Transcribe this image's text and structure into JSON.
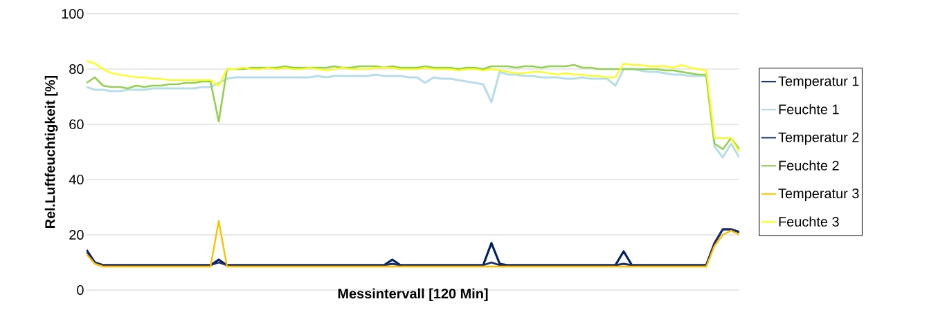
{
  "chart_data": {
    "type": "line",
    "xlabel": "Messintervall [120 Min]",
    "ylabel": "Rel.Luftfeuchtigkeit [%]",
    "categories": [
      null,
      null,
      null,
      null,
      null,
      null,
      null,
      null,
      null,
      null,
      null,
      null,
      null,
      null,
      null,
      null,
      null,
      null,
      null,
      null,
      null,
      null,
      null,
      null,
      null,
      null,
      null,
      null,
      null,
      null,
      null,
      null,
      null,
      null,
      null,
      null,
      null,
      null,
      null,
      null,
      null,
      null,
      null,
      null,
      null,
      null,
      null,
      null,
      null,
      null,
      null,
      null,
      null,
      null,
      null,
      null,
      null,
      null,
      null,
      null,
      null,
      null,
      null,
      null,
      null,
      null,
      null,
      null,
      null,
      null,
      null,
      null,
      null,
      null,
      null,
      null,
      null,
      null,
      null,
      null
    ],
    "ylim": [
      0,
      100
    ],
    "yticks": [
      0,
      20,
      40,
      60,
      80,
      100
    ],
    "grid": "y",
    "legend": "right",
    "series": [
      {
        "name": "Temperatur 1",
        "color": "#002060",
        "values": [
          14.5,
          10,
          9,
          9,
          9,
          9,
          9,
          9,
          9,
          9,
          9,
          9,
          9,
          9,
          9,
          9,
          11,
          9,
          9,
          9,
          9,
          9,
          9,
          9,
          9,
          9,
          9,
          9,
          9,
          9,
          9,
          9,
          9,
          9,
          9,
          9,
          9,
          11,
          9,
          9,
          9,
          9,
          9,
          9,
          9,
          9,
          9,
          9,
          9,
          17,
          9.5,
          9,
          9,
          9,
          9,
          9,
          9,
          9,
          9,
          9,
          9,
          9,
          9,
          9,
          9,
          14,
          9,
          9,
          9,
          9,
          9,
          9,
          9,
          9,
          9,
          9,
          17,
          22,
          22,
          21
        ]
      },
      {
        "name": "Feuchte 1",
        "color": "#b7dde8",
        "values": [
          73.5,
          72.5,
          72.5,
          72,
          72,
          72.5,
          72.5,
          72.5,
          73,
          73,
          73,
          73,
          73,
          73,
          73.5,
          73.5,
          75,
          76.5,
          77,
          77,
          77,
          77,
          77,
          77,
          77,
          77,
          77,
          77,
          77.5,
          77,
          77.5,
          77.5,
          77.5,
          77.5,
          77.5,
          78,
          77.5,
          77.5,
          77.5,
          77,
          77,
          75,
          77,
          76.5,
          76.5,
          76,
          75.5,
          75,
          74.5,
          68,
          79,
          78,
          78,
          77.5,
          77.5,
          77,
          77,
          77,
          76.5,
          76.5,
          77,
          76.5,
          76.5,
          76.5,
          74,
          80,
          80,
          79.5,
          79,
          79,
          78.5,
          78,
          78,
          77.5,
          77.5,
          77.5,
          52,
          48,
          53,
          48
        ]
      },
      {
        "name": "Temperatur 2",
        "color": "#1f2d6e",
        "values": [
          14,
          10,
          9,
          9,
          9,
          9,
          9,
          9,
          9,
          9,
          9,
          9,
          9,
          9,
          9,
          9,
          10,
          9,
          9,
          9,
          9,
          9,
          9,
          9,
          9,
          9,
          9,
          9,
          9,
          9,
          9,
          9,
          9,
          9,
          9,
          9,
          9,
          9.5,
          9,
          9,
          9,
          9,
          9,
          9,
          9,
          9,
          9,
          9,
          9,
          10,
          9,
          9,
          9,
          9,
          9,
          9,
          9,
          9,
          9,
          9,
          9,
          9,
          9,
          9,
          9,
          9.5,
          9,
          9,
          9,
          9,
          9,
          9,
          9,
          9,
          9,
          9,
          17,
          22,
          22,
          21
        ]
      },
      {
        "name": "Feuchte 2",
        "color": "#92d050",
        "values": [
          75,
          77,
          74,
          73.5,
          73.5,
          73,
          74,
          73.5,
          74,
          74,
          74.5,
          74.5,
          75,
          75,
          75.5,
          75.5,
          61,
          80,
          80,
          80,
          80.5,
          80.5,
          80.5,
          80.5,
          81,
          80.5,
          80.5,
          80.5,
          80.5,
          80.5,
          81,
          80.5,
          80.5,
          81,
          81,
          81,
          80.5,
          81,
          80.5,
          80.5,
          80.5,
          81,
          80.5,
          80.5,
          80.5,
          80,
          80.5,
          80.5,
          80,
          81,
          81,
          81,
          80.5,
          81,
          81,
          80.5,
          81,
          81,
          81,
          81.5,
          80.5,
          80.5,
          80,
          80,
          80,
          80,
          80,
          80,
          80,
          80,
          79.5,
          79.5,
          79,
          78.5,
          78,
          78,
          53,
          51,
          55,
          51
        ]
      },
      {
        "name": "Temperatur 3",
        "color": "#ffc000",
        "values": [
          13,
          9.5,
          8.5,
          8.5,
          8.5,
          8.5,
          8.5,
          8.5,
          8.5,
          8.5,
          8.5,
          8.5,
          8.5,
          8.5,
          8.5,
          8.5,
          25,
          8.5,
          8.5,
          8.5,
          8.5,
          8.5,
          8.5,
          8.5,
          8.5,
          8.5,
          8.5,
          8.5,
          8.5,
          8.5,
          8.5,
          8.5,
          8.5,
          8.5,
          8.5,
          8.5,
          8.5,
          8.5,
          8.5,
          8.5,
          8.5,
          8.5,
          8.5,
          8.5,
          8.5,
          8.5,
          8.5,
          8.5,
          8.5,
          8.5,
          8.5,
          8.5,
          8.5,
          8.5,
          8.5,
          8.5,
          8.5,
          8.5,
          8.5,
          8.5,
          8.5,
          8.5,
          8.5,
          8.5,
          8.5,
          8.5,
          8.5,
          8.5,
          8.5,
          8.5,
          8.5,
          8.5,
          8.5,
          8.5,
          8.5,
          8.5,
          16,
          20,
          21.5,
          20
        ]
      },
      {
        "name": "Feuchte 3",
        "color": "#ffff00",
        "values": [
          83,
          82,
          80,
          78.5,
          78,
          77.5,
          77,
          77,
          76.5,
          76.5,
          76,
          76,
          76,
          76,
          76,
          76,
          74,
          80,
          80,
          80.5,
          80,
          80,
          80.5,
          80,
          80.5,
          80,
          80,
          80.5,
          80,
          79.5,
          80,
          80.5,
          80,
          80,
          80,
          80.5,
          80.5,
          80.5,
          80,
          80,
          80,
          80.5,
          80,
          80,
          80,
          79.5,
          80,
          80,
          79.5,
          80,
          79.5,
          79,
          78.5,
          78.5,
          79,
          79,
          78.5,
          78,
          78.5,
          78,
          78,
          77.5,
          77.5,
          77,
          77,
          82,
          81.5,
          81.5,
          81,
          81,
          81,
          80.5,
          81.5,
          80.5,
          80,
          79.5,
          55,
          55,
          55,
          50
        ]
      }
    ]
  }
}
